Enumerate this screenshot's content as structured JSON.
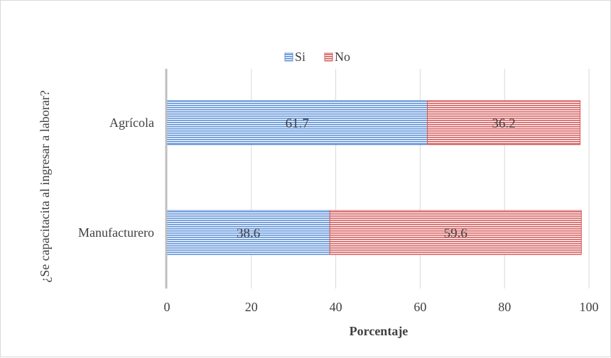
{
  "chart_data": {
    "type": "bar",
    "orientation": "horizontal",
    "stacked": true,
    "title": "",
    "categories": [
      "Agrícola",
      "Manufacturero"
    ],
    "series": [
      {
        "name": "Si",
        "values": [
          61.7,
          38.6
        ],
        "color": "#5b8fd9",
        "pattern": "horizontal-lines"
      },
      {
        "name": "No",
        "values": [
          36.2,
          59.6
        ],
        "color": "#d65b5b",
        "pattern": "horizontal-lines"
      }
    ],
    "data_labels": true,
    "xlabel": "Porcentaje",
    "ylabel": "¿Se capacitacita al ingresar a laborar?",
    "xlim": [
      0,
      100
    ],
    "xticks": [
      0,
      20,
      40,
      60,
      80,
      100
    ],
    "grid": "vertical",
    "legend": "top"
  }
}
